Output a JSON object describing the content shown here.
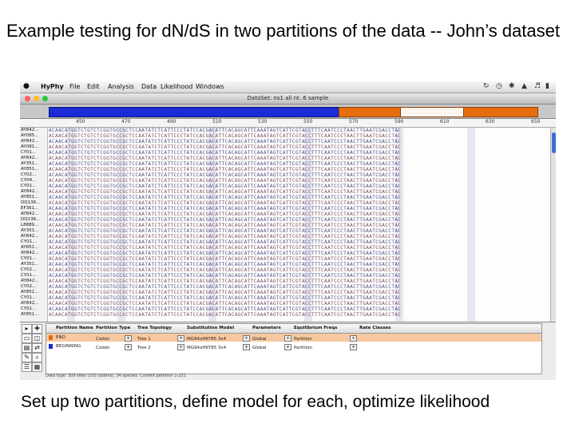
{
  "slide": {
    "title": "Example testing for dN/dS in two partitions of the data -- John’s dataset",
    "caption": "Set up two partitions, define model for each, optimize likelihood"
  },
  "menubar": {
    "apple": "",
    "app_name": "HyPhy",
    "items": [
      "File",
      "Edit",
      "Analysis",
      "Data",
      "Likelihood",
      "Windows"
    ]
  },
  "window": {
    "title": "DataSet: ns1 all nt. 6 sample",
    "colors": {
      "close": "#ff5f57",
      "minimize": "#febc2e",
      "zoom": "#28c840"
    }
  },
  "position_bar": {
    "colors": {
      "partition1": "#1b2bd6",
      "partition2": "#e86d0c"
    }
  },
  "ruler": {
    "ticks": [
      "450",
      "470",
      "490",
      "510",
      "530",
      "550",
      "570",
      "590",
      "610",
      "630",
      "650"
    ]
  },
  "sequences": {
    "names": [
      "AY842...",
      "AY085...",
      "AY842...",
      "AY081...",
      "CY01...",
      "AY842...",
      "AY351...",
      "AY851...",
      "CY02...",
      "CY04...",
      "CY01...",
      "AY842...",
      "AY851...",
      "DQ136...",
      "EF361...",
      "AY842...",
      "DQ136...",
      "L8889...",
      "AY351...",
      "AY842...",
      "CY01...",
      "AY851...",
      "AY842...",
      "CY01...",
      "AY351...",
      "CY02...",
      "CY01...",
      "AY842...",
      "CY02...",
      "AY851...",
      "CY01...",
      "AY842...",
      "CY01...",
      "AY851..."
    ],
    "rows": [
      "ACAACATGGTCTGTCTCGGTGCCGCTCCAATATCTCATTCCCTATCCACGACATTCACAGCATTCAAATAGTCATTCGTACCTTTCAATCCCTAACTTGAATCGACCTAC",
      "ACAACATGGTCTGTCTCGGTGCCGCTCCAATATCTCATTCCCTATCCACGACATTCACAGCATTCAAATAGTCATTCGTACCTTTCAATCCCTAACTTGAATCGACCTAC",
      "ACAACATGGTCTGTCTCGGTGCCGCTCCAATATCTCATTCCCTATCCACGACATTCACAGCATTCAAATAGTCATTCGTACCTTTCAATCCCTAACTTGAATCGACCTAC",
      "ACAACATGGTCTGTCTCGGTGCCGCTCCAATATCTCATTCCCTATCCACGACATTCACAGCATTCAAATAGTCATTCGTACCTTTCAATCCCTAACTTGAATCGACCTAC",
      "ACAACATGGTCTGTCTCGGTGCCGCTCCAATATCTCATTCCCTATCCACGACATTCACAGCATTCAAATAGTCATTCGTACCTTTCAATCCCTAACTTGAATCGACCTAC",
      "ACAACATGGTCTGTCTCGGTGCCGCTCCAATATCTCATTCCCTATCCACGACATTCACAGCATTCAAATAGTCATTCGTACCTTTCAATCCCTAACTTGAATCGACCTAC",
      "ACAACATGGTCTGTCTCGGTGCCGCTCCAATATCTCATTCCCTATCCACGACATTCACAGCATTCAAATAGTCATTCGTACCTTTCAATCCCTAACTTGAATCGACCTAC",
      "ACAACATGGTCTGTCTCGGTGCCGCTCCAATATCTCATTCCCTATCCACGACATTCACAGCATTCAAATAGTCATTCGTACCTTTCAATCCCTAACTTGAATCGACCTAC",
      "ACAACATGGTCTGTCTCGGTGCCGCTCCAATATCTCATTCCCTATCCACGACATTCACAGCATTCAAATAGTCATTCGTACCTTTCAATCCCTAACTTGAATCGACCTAC",
      "ACAACATGGTCTGTCTCGGTGCCGCTCCAATATCTCATTCCCTATCCACGACATTCACAGCATTCAAATAGTCATTCGTACCTTTCAATCCCTAACTTGAATCGACCTAC",
      "ACAACATGGTCTGTCTCGGTGCCGCTCCAATATCTCATTCCCTATCCACGACATTCACAGCATTCAAATAGTCATTCGTACCTTTCAATCCCTAACTTGAATCGACCTAC",
      "ACAACATGGTCTGTCTCGGTGCCGCTCCAATATCTCATTCCCTATCCACGACATTCACAGCATTCAAATAGTCATTCGTACCTTTCAATCCCTAACTTGAATCGACCTAC",
      "ACAACATGGTCTGTCTCGGTGCCGCTCCAATATCTCATTCCCTATCCACGACATTCACAGCATTCAAATAGTCATTCGTACCTTTCAATCCCTAACTTGAATCGACCTAC",
      "ACAACATGGTCTGTCTCGGTGCCGCTCCAATATCTCATTCCCTATCCACGACATTCACAGCATTCAAATAGTCATTCGTACCTTTCAATCCCTAACTTGAATCGACCTAC",
      "ACAACATGGTCTGTCTCGGTGCCGCTCCAATATCTCATTCCCTATCCACGACATTCACAGCATTCAAATAGTCATTCGTACCTTTCAATCCCTAACTTGAATCGACCTAC",
      "ACAACATGGTCTGTCTCGGTGCCGCTCCAATATCTCATTCCCTATCCACGACATTCACAGCATTCAAATAGTCATTCGTACCTTTCAATCCCTAACTTGAATCGACCTAC",
      "ACAACATGGTCTGTCTCGGTGCCGCTCCAATATCTCATTCCCTATCCACGACATTCACAGCATTCAAATAGTCATTCGTACCTTTCAATCCCTAACTTGAATCGACCTAC",
      "ACAACATGGTCTGTCTCGGTGCCGCTCCAATATCTCATTCCCTATCCACGACATTCACAGCATTCAAATAGTCATTCGTACCTTTCAATCCCTAACTTGAATCGACCTAC",
      "ACAACATGGTCTGTCTCGGTGCCGCTCCAATATCTCATTCCCTATCCACGACATTCACAGCATTCAAATAGTCATTCGTACCTTTCAATCCCTAACTTGAATCGACCTAC",
      "ACAACATGGTCTGTCTCGGTGCCGCTCCAATATCTCATTCCCTATCCACGACATTCACAGCATTCAAATAGTCATTCGTACCTTTCAATCCCTAACTTGAATCGACCTAC",
      "ACAACATGGTCTGTCTCGGTGCCGCTCCAATATCTCATTCCCTATCCACGACATTCACAGCATTCAAATAGTCATTCGTACCTTTCAATCCCTAACTTGAATCGACCTAC",
      "ACAACATGGTCTGTCTCGGTGCCGCTCCAATATCTCATTCCCTATCCACGACATTCACAGCATTCAAATAGTCATTCGTACCTTTCAATCCCTAACTTGAATCGACCTAC",
      "ACAACATGGTCTGTCTCGGTGCCGCTCCAATATCTCATTCCCTATCCACGACATTCACAGCATTCAAATAGTCATTCGTACCTTTCAATCCCTAACTTGAATCGACCTAC",
      "ACAACATGGTCTGTCTCGGTGCCGCTCCAATATCTCATTCCCTATCCACGACATTCACAGCATTCAAATAGTCATTCGTACCTTTCAATCCCTAACTTGAATCGACCTAC",
      "ACAACATGGTCTGTCTCGGTGCCGCTCCAATATCTCATTCCCTATCCACGACATTCACAGCATTCAAATAGTCATTCGTACCTTTCAATCCCTAACTTGAATCGACCTAC",
      "ACAACATGGTCTGTCTCGGTGCCGCTCCAATATCTCATTCCCTATCCACGACATTCACAGCATTCAAATAGTCATTCGTACCTTTCAATCCCTAACTTGAATCGACCTAC",
      "ACAACATGGTCTGTCTCGGTGCCGCTCCAATATCTCATTCCCTATCCACGACATTCACAGCATTCAAATAGTCATTCGTACCTTTCAATCCCTAACTTGAATCGACCTAC",
      "ACAACATGGTCTGTCTCGGTGCCGCTCCAATATCTCATTCCCTATCCACGACATTCACAGCATTCAAATAGTCATTCGTACCTTTCAATCCCTAACTTGAATCGACCTAC",
      "ACAACATGGTCTGTCTCGGTGCCGCTCCAATATCTCATTCCCTATCCACGACATTCACAGCATTCAAATAGTCATTCGTACCTTTCAATCCCTAACTTGAATCGACCTAC",
      "ACAACATGGTCTGTCTCGGTGCCGCTCCAATATCTCATTCCCTATCCACGACATTCACAGCATTCAAATAGTCATTCGTACCTTTCAATCCCTAACTTGAATCGACCTAC",
      "ACAACATGGTCTGTCTCGGTGCCGCTCCAATATCTCATTCCCTATCCACGACATTCACAGCATTCAAATAGTCATTCGTACCTTTCAATCCCTAACTTGAATCGACCTAC",
      "ACAACATGGTCTGTCTCGGTGCCGCTCCAATATCTCATTCCCTATCCACGACATTCACAGCATTCAAATAGTCATTCGTACCTTTCAATCCCTAACTTGAATCGACCTAC",
      "ACAACATGGTCTGTCTCGGTGCCGCTCCAATATCTCATTCCCTATCCACGACATTCACAGCATTCAAATAGTCATTCGTACCTTTCAATCCCTAACTTGAATCGACCTAC",
      "ACAACATGGTCTGTCTCGGTGCCGCTCCAATATCTCATTCCCTATCCACGACATTCACAGCATTCAAATAGTCATTCGTACCTTTCAATCCCTAACTTGAATCGACCTAC"
    ]
  },
  "partition_table": {
    "headers": [
      "Partition Name",
      "Partition Type",
      "Tree Topology",
      "Substitution Model",
      "Parameters",
      "Equilibrium Freqs",
      "Rate Classes"
    ],
    "rows": [
      {
        "name": "END",
        "type": "Codon",
        "tree": "Tree 1",
        "model": "MG94xHKY85 3x4",
        "params": "Global",
        "freqs": "Partition",
        "color": "#e86d0c"
      },
      {
        "name": "BEGINNING",
        "type": "Codon",
        "tree": "Tree 2",
        "model": "MG94xHKY85 3x4",
        "params": "Global",
        "freqs": "Partition",
        "color": "#1b2bd6"
      }
    ],
    "status": "Data type: 309 sites (103 codons), 34 species. Current partition 1-231"
  },
  "tools": [
    "▸",
    "✚",
    "▭",
    "◫",
    "▤",
    "⇄",
    "✎",
    "⌕",
    "☰",
    "▦"
  ]
}
